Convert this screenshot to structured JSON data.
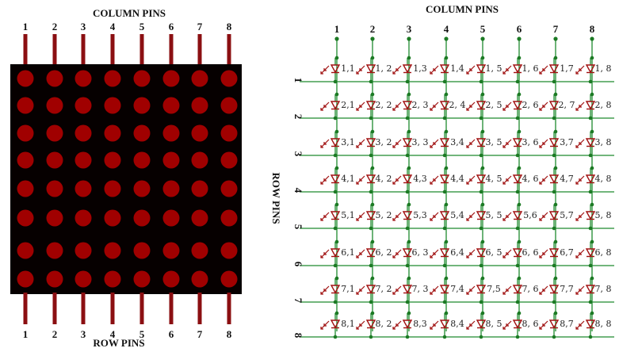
{
  "left_module": {
    "top_title": "COLUMN PINS",
    "bottom_title": "ROW PINS",
    "top_pin_labels": [
      "1",
      "2",
      "3",
      "4",
      "5",
      "6",
      "7",
      "8"
    ],
    "bottom_pin_labels": [
      "1",
      "2",
      "3",
      "4",
      "5",
      "6",
      "7",
      "8"
    ],
    "rows": 8,
    "cols": 8
  },
  "right_schematic": {
    "top_title": "COLUMN PINS",
    "side_title": "ROW PINS",
    "column_labels": [
      "1",
      "2",
      "3",
      "4",
      "5",
      "6",
      "7",
      "8"
    ],
    "row_labels": [
      "1",
      "2",
      "3",
      "4",
      "5",
      "6",
      "7",
      "8"
    ],
    "cell_labels": [
      [
        "1,1",
        "1, 2",
        "1,3",
        "1,4",
        "1, 5",
        "1, 6",
        "1,7",
        "1, 8"
      ],
      [
        "2,1",
        "2, 2",
        "2, 3",
        "2, 4",
        "2, 5",
        "2, 6",
        "2, 7",
        "2, 8"
      ],
      [
        "3,1",
        "3, 2",
        "3, 3",
        "3,4",
        "3, 5",
        "3, 6",
        "3,7",
        "3, 8"
      ],
      [
        "4,1",
        "4, 2",
        "4,3",
        "4,4",
        "4, 5",
        "4, 6",
        "4,7",
        "4, 8"
      ],
      [
        "5,1",
        "5, 2",
        "5,3",
        "5,4",
        "5, 5",
        "5,6",
        "5,7",
        "5, 8"
      ],
      [
        "6,1",
        "6, 2",
        "6, 3",
        "6,4",
        "6, 5",
        "6, 6",
        "6,7",
        "6, 8"
      ],
      [
        "7,1",
        "7, 2",
        "7, 3",
        "7,4",
        "7,5",
        "7, 6",
        "7,7",
        "7, 8"
      ],
      [
        "8,1",
        "8, 2",
        "8,3",
        "8,4",
        "8, 5",
        "8, 6",
        "8,7",
        "8, 8"
      ]
    ]
  },
  "colors": {
    "board": "#060000",
    "led_dot": "#a00000",
    "pin": "#8b0f12",
    "wire": "#1e8a2e",
    "node": "#1c7a24",
    "led_symbol": "#a01010"
  }
}
